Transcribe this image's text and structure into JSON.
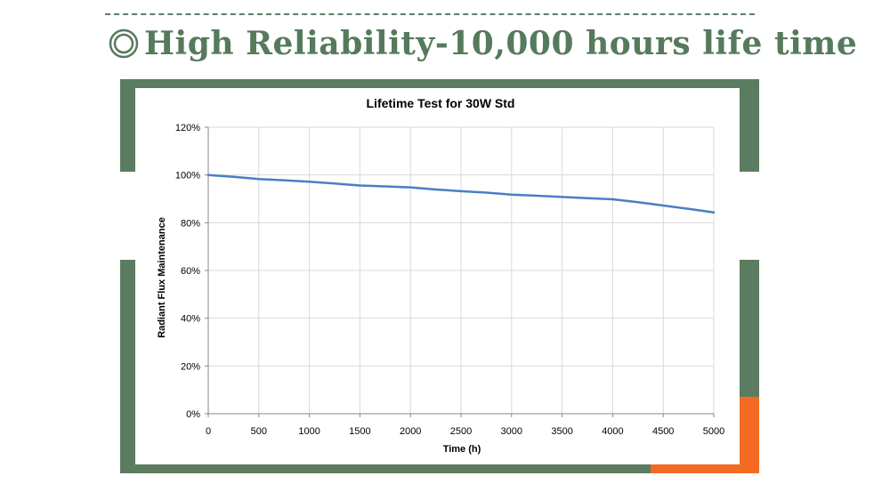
{
  "headline": {
    "symbol": "◎",
    "text": "High Reliability-10,000 hours life time"
  },
  "colors": {
    "accent_green": "#5b7c60",
    "headline_green": "#557a5c",
    "accent_orange": "#f36b23",
    "series_line": "#4a7ec4",
    "gridline": "#d9d9d9"
  },
  "chart_data": {
    "type": "line",
    "title": "Lifetime Test for 30W Std",
    "xlabel": "Time (h)",
    "ylabel": "Radiant Flux Maintenance",
    "xlim": [
      0,
      5000
    ],
    "ylim": [
      0,
      120
    ],
    "x_ticks": [
      "0",
      "500",
      "1000",
      "1500",
      "2000",
      "2500",
      "3000",
      "3500",
      "4000",
      "4500",
      "5000"
    ],
    "y_ticks": [
      "0%",
      "20%",
      "40%",
      "60%",
      "80%",
      "100%",
      "120%"
    ],
    "grid": true,
    "legend": "none",
    "series": [
      {
        "x": [
          0,
          250,
          500,
          750,
          1000,
          1250,
          1500,
          1750,
          2000,
          2250,
          2500,
          2750,
          3000,
          3250,
          3500,
          3750,
          4000,
          4250,
          4500,
          4750,
          5000
        ],
        "values": [
          100,
          99.2,
          98.3,
          97.8,
          97.2,
          96.4,
          95.6,
          95.2,
          94.8,
          93.9,
          93.2,
          92.6,
          91.8,
          91.3,
          90.8,
          90.3,
          89.8,
          88.6,
          87.2,
          85.8,
          84.3
        ]
      }
    ]
  }
}
